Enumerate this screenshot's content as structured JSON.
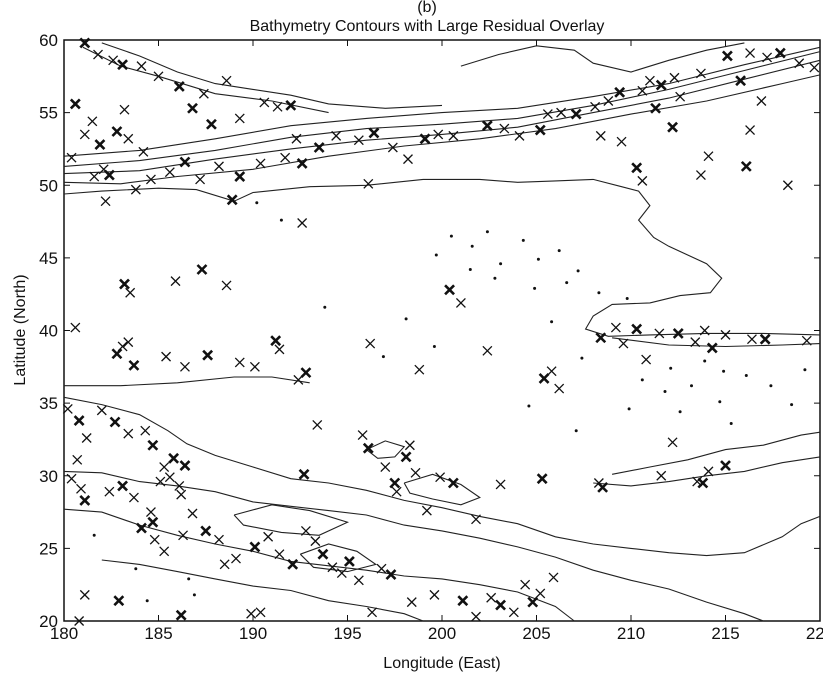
{
  "chart_data": {
    "type": "scatter",
    "panel_label": "(b)",
    "title": "Bathymetry Contours with Large Residual Overlay",
    "xlabel": "Longitude (East)",
    "ylabel": "Latitude (North)",
    "xlim": [
      180,
      220
    ],
    "ylim": [
      20,
      60
    ],
    "xticks": [
      180,
      185,
      190,
      195,
      200,
      205,
      210,
      215,
      220
    ],
    "yticks": [
      20,
      25,
      30,
      35,
      40,
      45,
      50,
      55,
      60
    ],
    "grid": false,
    "legend": "none",
    "colors": {
      "ink": "#111111",
      "background": "#ffffff"
    },
    "series": [
      {
        "marker": "x",
        "points": [
          [
            181.1,
            59.8
          ],
          [
            181.8,
            59.0
          ],
          [
            182.6,
            58.6
          ],
          [
            183.1,
            58.3
          ],
          [
            184.1,
            58.2
          ],
          [
            185.0,
            57.5
          ],
          [
            186.1,
            56.8
          ],
          [
            187.4,
            56.3
          ],
          [
            188.6,
            57.2
          ],
          [
            180.6,
            55.6
          ],
          [
            181.5,
            54.4
          ],
          [
            181.1,
            53.5
          ],
          [
            182.8,
            53.7
          ],
          [
            183.4,
            53.2
          ],
          [
            184.2,
            52.3
          ],
          [
            186.8,
            55.3
          ],
          [
            190.6,
            55.7
          ],
          [
            191.3,
            55.4
          ],
          [
            192.0,
            55.5
          ],
          [
            189.3,
            54.6
          ],
          [
            192.3,
            53.2
          ],
          [
            193.5,
            52.6
          ],
          [
            194.4,
            53.4
          ],
          [
            195.6,
            53.1
          ],
          [
            196.4,
            53.6
          ],
          [
            197.4,
            52.6
          ],
          [
            198.2,
            51.8
          ],
          [
            199.1,
            53.2
          ],
          [
            199.8,
            53.5
          ],
          [
            200.6,
            53.4
          ],
          [
            202.4,
            54.1
          ],
          [
            203.3,
            53.9
          ],
          [
            204.1,
            53.4
          ],
          [
            205.2,
            53.8
          ],
          [
            205.6,
            54.9
          ],
          [
            206.3,
            55.0
          ],
          [
            207.1,
            54.9
          ],
          [
            208.1,
            55.4
          ],
          [
            208.8,
            55.8
          ],
          [
            209.4,
            56.4
          ],
          [
            210.6,
            56.5
          ],
          [
            211.0,
            57.2
          ],
          [
            211.6,
            56.9
          ],
          [
            212.3,
            57.4
          ],
          [
            213.7,
            57.7
          ],
          [
            215.1,
            58.9
          ],
          [
            216.3,
            59.1
          ],
          [
            217.2,
            58.8
          ],
          [
            217.9,
            59.1
          ],
          [
            218.9,
            58.4
          ],
          [
            219.7,
            58.1
          ],
          [
            215.8,
            57.2
          ],
          [
            216.9,
            55.8
          ],
          [
            212.6,
            56.1
          ],
          [
            211.3,
            55.3
          ],
          [
            209.5,
            53.0
          ],
          [
            208.4,
            53.4
          ],
          [
            212.2,
            54.0
          ],
          [
            216.3,
            53.8
          ],
          [
            210.6,
            50.3
          ],
          [
            210.3,
            51.2
          ],
          [
            213.7,
            50.7
          ],
          [
            214.1,
            52.0
          ],
          [
            216.1,
            51.3
          ],
          [
            218.3,
            50.0
          ],
          [
            183.2,
            55.2
          ],
          [
            187.8,
            54.2
          ],
          [
            184.6,
            50.4
          ],
          [
            185.6,
            50.9
          ],
          [
            186.4,
            51.6
          ],
          [
            187.2,
            50.4
          ],
          [
            188.2,
            51.3
          ],
          [
            189.3,
            50.6
          ],
          [
            190.4,
            51.5
          ],
          [
            191.7,
            51.9
          ],
          [
            192.6,
            51.5
          ],
          [
            181.6,
            50.6
          ],
          [
            180.4,
            51.9
          ],
          [
            182.4,
            50.7
          ],
          [
            183.8,
            49.7
          ],
          [
            182.2,
            48.9
          ],
          [
            188.9,
            49.0
          ],
          [
            196.1,
            50.1
          ],
          [
            180.6,
            40.2
          ],
          [
            183.2,
            43.2
          ],
          [
            183.5,
            42.6
          ],
          [
            185.9,
            43.4
          ],
          [
            187.3,
            44.2
          ],
          [
            188.6,
            43.1
          ],
          [
            192.6,
            47.4
          ],
          [
            182.8,
            38.4
          ],
          [
            183.1,
            38.9
          ],
          [
            183.4,
            39.2
          ],
          [
            183.7,
            37.6
          ],
          [
            185.4,
            38.2
          ],
          [
            186.4,
            37.5
          ],
          [
            187.6,
            38.3
          ],
          [
            189.3,
            37.8
          ],
          [
            190.1,
            37.5
          ],
          [
            191.2,
            39.3
          ],
          [
            191.4,
            38.7
          ],
          [
            192.4,
            36.6
          ],
          [
            192.8,
            37.1
          ],
          [
            196.2,
            39.1
          ],
          [
            198.8,
            37.3
          ],
          [
            200.4,
            42.8
          ],
          [
            201.0,
            41.9
          ],
          [
            202.4,
            38.6
          ],
          [
            205.4,
            36.7
          ],
          [
            205.8,
            37.2
          ],
          [
            206.2,
            36.0
          ],
          [
            208.4,
            39.5
          ],
          [
            209.2,
            40.2
          ],
          [
            209.6,
            39.1
          ],
          [
            210.3,
            40.1
          ],
          [
            210.8,
            38.0
          ],
          [
            211.5,
            39.8
          ],
          [
            212.5,
            39.8
          ],
          [
            213.4,
            39.2
          ],
          [
            213.9,
            40.0
          ],
          [
            214.3,
            38.8
          ],
          [
            215.0,
            39.7
          ],
          [
            216.4,
            39.4
          ],
          [
            217.1,
            39.4
          ],
          [
            219.3,
            39.3
          ],
          [
            180.2,
            34.6
          ],
          [
            180.8,
            33.8
          ],
          [
            181.2,
            32.6
          ],
          [
            182.0,
            34.5
          ],
          [
            182.7,
            33.7
          ],
          [
            183.4,
            32.9
          ],
          [
            184.3,
            33.1
          ],
          [
            184.7,
            32.1
          ],
          [
            180.7,
            31.1
          ],
          [
            185.3,
            30.6
          ],
          [
            185.8,
            31.2
          ],
          [
            186.1,
            29.3
          ],
          [
            185.6,
            29.9
          ],
          [
            186.4,
            30.7
          ],
          [
            186.2,
            28.7
          ],
          [
            182.4,
            28.9
          ],
          [
            181.1,
            28.3
          ],
          [
            180.4,
            29.8
          ],
          [
            180.9,
            29.1
          ],
          [
            183.1,
            29.3
          ],
          [
            183.7,
            28.5
          ],
          [
            184.6,
            27.5
          ],
          [
            184.1,
            26.4
          ],
          [
            184.8,
            25.6
          ],
          [
            185.3,
            24.8
          ],
          [
            184.7,
            26.8
          ],
          [
            186.3,
            25.9
          ],
          [
            186.8,
            27.4
          ],
          [
            187.5,
            26.2
          ],
          [
            188.2,
            25.6
          ],
          [
            189.1,
            24.3
          ],
          [
            190.1,
            25.1
          ],
          [
            190.8,
            25.8
          ],
          [
            191.4,
            24.6
          ],
          [
            192.1,
            23.9
          ],
          [
            192.8,
            26.2
          ],
          [
            193.3,
            25.5
          ],
          [
            193.7,
            24.6
          ],
          [
            194.2,
            23.7
          ],
          [
            194.7,
            23.3
          ],
          [
            195.1,
            24.1
          ],
          [
            195.6,
            22.8
          ],
          [
            196.8,
            23.6
          ],
          [
            197.3,
            23.2
          ],
          [
            198.4,
            21.3
          ],
          [
            199.6,
            21.8
          ],
          [
            201.1,
            21.4
          ],
          [
            201.8,
            20.3
          ],
          [
            202.6,
            21.6
          ],
          [
            203.1,
            21.1
          ],
          [
            203.8,
            20.6
          ],
          [
            204.4,
            22.5
          ],
          [
            204.8,
            21.3
          ],
          [
            205.2,
            21.9
          ],
          [
            196.3,
            20.6
          ],
          [
            186.2,
            20.4
          ],
          [
            189.9,
            20.5
          ],
          [
            190.4,
            20.6
          ],
          [
            182.9,
            21.4
          ],
          [
            181.1,
            21.8
          ],
          [
            180.8,
            20.0
          ],
          [
            192.7,
            30.1
          ],
          [
            193.4,
            33.5
          ],
          [
            195.8,
            32.8
          ],
          [
            196.1,
            31.9
          ],
          [
            197.0,
            30.6
          ],
          [
            197.6,
            28.9
          ],
          [
            198.1,
            31.3
          ],
          [
            198.6,
            30.2
          ],
          [
            198.3,
            32.1
          ],
          [
            197.5,
            29.5
          ],
          [
            199.2,
            27.6
          ],
          [
            199.9,
            29.9
          ],
          [
            200.6,
            29.5
          ],
          [
            201.8,
            27.0
          ],
          [
            203.1,
            29.4
          ],
          [
            205.3,
            29.8
          ],
          [
            205.9,
            23.0
          ],
          [
            208.3,
            29.5
          ],
          [
            208.5,
            29.2
          ],
          [
            213.5,
            29.6
          ],
          [
            214.1,
            30.3
          ],
          [
            215.0,
            30.7
          ],
          [
            212.2,
            32.3
          ],
          [
            211.6,
            30.0
          ],
          [
            213.8,
            29.5
          ],
          [
            185.1,
            29.6
          ],
          [
            188.5,
            23.9
          ],
          [
            181.9,
            52.8
          ],
          [
            182.1,
            51.1
          ]
        ]
      }
    ]
  }
}
